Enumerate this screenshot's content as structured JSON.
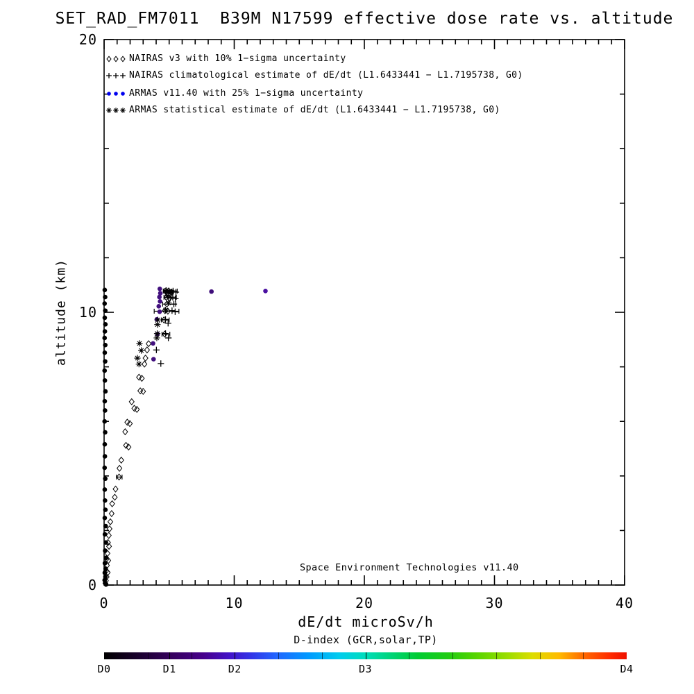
{
  "title": "SET_RAD_FM7011  B39M N17599 effective dose rate vs. altitude",
  "annotation": "Space Environment Technologies v11.40",
  "legend": [
    {
      "symbol": "diamond",
      "color": "#000000",
      "label": "NAIRAS v3 with 10% 1−sigma uncertainty"
    },
    {
      "symbol": "plus",
      "color": "#000000",
      "label": "NAIRAS climatological estimate of dE/dt (L1.6433441 − L1.7195738, G0)"
    },
    {
      "symbol": "dot",
      "color": "#0000ee",
      "label": "ARMAS v11.40 with 25% 1−sigma uncertainty"
    },
    {
      "symbol": "asterisk",
      "color": "#000000",
      "label": "ARMAS statistical estimate of dE/dt (L1.6433441 − L1.7195738, G0)"
    }
  ],
  "chart_data": {
    "type": "scatter",
    "title": "SET_RAD_FM7011  B39M N17599 effective dose rate vs. altitude",
    "xlabel": "dE/dt microSv/h",
    "ylabel": "altitude (km)",
    "xlim": [
      0,
      40
    ],
    "ylim": [
      0,
      20
    ],
    "x_ticks": [
      0,
      10,
      20,
      30,
      40
    ],
    "y_ticks": [
      0,
      10,
      20
    ],
    "x_minor_step": 1,
    "y_minor_step": 2,
    "grid": false,
    "legend_position": "top-left-inside",
    "series": [
      {
        "name": "NAIRAS v3 with 10% 1-sigma uncertainty",
        "marker": "diamond",
        "color": "#000000",
        "points": [
          [
            4.72,
            10.78
          ],
          [
            4.95,
            10.78
          ],
          [
            5.18,
            10.74
          ],
          [
            4.78,
            10.55
          ],
          [
            5.02,
            10.52
          ],
          [
            4.82,
            10.3
          ],
          [
            4.68,
            10.06
          ],
          [
            4.9,
            10.04
          ],
          [
            4.6,
            9.72
          ],
          [
            4.65,
            9.2
          ],
          [
            3.42,
            8.85
          ],
          [
            3.3,
            8.62
          ],
          [
            3.18,
            8.32
          ],
          [
            3.1,
            8.1
          ],
          [
            2.68,
            7.62
          ],
          [
            2.9,
            7.58
          ],
          [
            2.78,
            7.12
          ],
          [
            3.0,
            7.1
          ],
          [
            2.12,
            6.72
          ],
          [
            2.32,
            6.48
          ],
          [
            2.52,
            6.44
          ],
          [
            1.78,
            5.97
          ],
          [
            1.98,
            5.92
          ],
          [
            1.62,
            5.62
          ],
          [
            1.68,
            5.12
          ],
          [
            1.88,
            5.06
          ],
          [
            1.32,
            4.58
          ],
          [
            1.18,
            4.28
          ],
          [
            1.15,
            3.96
          ],
          [
            0.88,
            3.52
          ],
          [
            0.82,
            3.22
          ],
          [
            0.62,
            2.98
          ],
          [
            0.58,
            2.62
          ],
          [
            0.48,
            2.32
          ],
          [
            0.42,
            2.06
          ],
          [
            0.36,
            1.82
          ],
          [
            0.3,
            1.56
          ],
          [
            0.38,
            1.42
          ],
          [
            0.26,
            1.16
          ],
          [
            0.2,
            0.96
          ],
          [
            0.32,
            0.9
          ],
          [
            0.22,
            0.72
          ],
          [
            0.16,
            0.52
          ],
          [
            0.28,
            0.46
          ],
          [
            0.2,
            0.3
          ],
          [
            0.14,
            0.16
          ],
          [
            0.1,
            0.06
          ]
        ]
      },
      {
        "name": "NAIRAS climatological estimate of dE/dt (L1.6433441 - L1.7195738, G0)",
        "marker": "plus",
        "color": "#000000",
        "points": [
          [
            5.3,
            10.78
          ],
          [
            5.52,
            10.74
          ],
          [
            5.28,
            10.55
          ],
          [
            5.48,
            10.5
          ],
          [
            5.36,
            10.3
          ],
          [
            5.22,
            10.06
          ],
          [
            5.46,
            10.02
          ],
          [
            4.72,
            9.74
          ],
          [
            4.92,
            9.6
          ],
          [
            4.72,
            9.22
          ],
          [
            4.94,
            9.06
          ],
          [
            4.02,
            8.62
          ],
          [
            4.36,
            8.12
          ]
        ]
      },
      {
        "name": "ARMAS v11.40 with 25% 1-sigma uncertainty",
        "marker": "dot",
        "color": "#42107e",
        "points_colored": [
          [
            4.28,
            10.86,
            "#42107e"
          ],
          [
            4.32,
            10.7,
            "#42107e"
          ],
          [
            4.25,
            10.56,
            "#42107e"
          ],
          [
            4.3,
            10.4,
            "#42107e"
          ],
          [
            4.2,
            10.22,
            "#42107e"
          ],
          [
            4.27,
            10.02,
            "#42107e"
          ],
          [
            4.05,
            9.74,
            "#42107e"
          ],
          [
            4.1,
            9.2,
            "#42107e"
          ],
          [
            3.76,
            8.86,
            "#42107e"
          ],
          [
            3.8,
            8.28,
            "#42107e"
          ],
          [
            8.25,
            10.76,
            "#3f0e7a"
          ],
          [
            12.4,
            10.78,
            "#4a10a0"
          ],
          [
            0.05,
            10.82,
            "#000000"
          ],
          [
            0.08,
            10.56,
            "#000000"
          ],
          [
            0.04,
            10.32,
            "#000000"
          ],
          [
            0.09,
            10.06,
            "#000000"
          ],
          [
            0.05,
            9.8,
            "#000000"
          ],
          [
            0.1,
            9.56,
            "#000000"
          ],
          [
            0.06,
            9.3,
            "#000000"
          ],
          [
            0.04,
            9.06,
            "#000000"
          ],
          [
            0.09,
            8.8,
            "#000000"
          ],
          [
            0.05,
            8.52,
            "#000000"
          ],
          [
            0.08,
            8.2,
            "#000000"
          ],
          [
            0.04,
            7.86,
            "#000000"
          ],
          [
            0.06,
            7.5,
            "#000000"
          ],
          [
            0.1,
            7.1,
            "#000000"
          ],
          [
            0.05,
            6.74,
            "#000000"
          ],
          [
            0.07,
            6.4,
            "#000000"
          ],
          [
            0.04,
            6.0,
            "#000000"
          ],
          [
            0.08,
            5.6,
            "#000000"
          ],
          [
            0.05,
            5.16,
            "#000000"
          ],
          [
            0.06,
            4.72,
            "#000000"
          ],
          [
            0.04,
            4.3,
            "#000000"
          ],
          [
            0.09,
            3.9,
            "#000000"
          ],
          [
            0.05,
            3.5,
            "#000000"
          ],
          [
            0.07,
            3.1,
            "#000000"
          ],
          [
            0.1,
            2.76,
            "#000000"
          ],
          [
            0.05,
            2.46,
            "#000000"
          ],
          [
            0.12,
            2.16,
            "#000000"
          ],
          [
            0.06,
            1.86,
            "#000000"
          ],
          [
            0.14,
            1.56,
            "#000000"
          ],
          [
            0.08,
            1.26,
            "#000000"
          ],
          [
            0.16,
            1.0,
            "#000000"
          ],
          [
            0.06,
            0.8,
            "#000000"
          ],
          [
            0.12,
            0.6,
            "#000000"
          ],
          [
            0.05,
            0.45,
            "#000000"
          ],
          [
            0.1,
            0.3,
            "#000000"
          ],
          [
            0.04,
            0.18,
            "#000000"
          ],
          [
            0.08,
            0.08,
            "#000000"
          ],
          [
            0.15,
            0.02,
            "#000000"
          ]
        ]
      },
      {
        "name": "ARMAS statistical estimate of dE/dt (L1.6433441 - L1.7195738, G0)",
        "marker": "asterisk",
        "color": "#000000",
        "points": [
          [
            4.78,
            10.8
          ],
          [
            5.0,
            10.78
          ],
          [
            5.2,
            10.74
          ],
          [
            4.85,
            10.6
          ],
          [
            5.08,
            10.56
          ],
          [
            4.95,
            10.35
          ],
          [
            4.72,
            10.08
          ],
          [
            4.12,
            9.72
          ],
          [
            4.1,
            9.55
          ],
          [
            4.08,
            9.22
          ],
          [
            4.05,
            9.06
          ],
          [
            2.72,
            8.86
          ],
          [
            2.86,
            8.6
          ],
          [
            2.56,
            8.32
          ],
          [
            2.68,
            8.1
          ]
        ]
      }
    ],
    "error_bars": [
      [
        4.55,
        5.62,
        10.78
      ],
      [
        4.6,
        5.55,
        10.55
      ],
      [
        4.5,
        5.5,
        10.3
      ],
      [
        3.85,
        5.75,
        10.04
      ],
      [
        4.4,
        5.0,
        9.72
      ],
      [
        4.45,
        5.05,
        9.2
      ],
      [
        0.95,
        1.38,
        3.96
      ]
    ],
    "dense_cluster_rects": [
      [
        4.62,
        10.82,
        5.35,
        10.68
      ]
    ]
  },
  "colorbar": {
    "label": "D-index (GCR,solar,TP)",
    "tick_labels": [
      {
        "text": "D0",
        "pos": 0
      },
      {
        "text": "D1",
        "pos": 12.5
      },
      {
        "text": "D2",
        "pos": 25
      },
      {
        "text": "D3",
        "pos": 50
      },
      {
        "text": "D4",
        "pos": 100
      }
    ],
    "minor_tick_count": 11,
    "gradient": [
      [
        0,
        "#000000"
      ],
      [
        7,
        "#1b0030"
      ],
      [
        13,
        "#36005e"
      ],
      [
        19,
        "#47008c"
      ],
      [
        24,
        "#4312c8"
      ],
      [
        28,
        "#3333e6"
      ],
      [
        33,
        "#2266ff"
      ],
      [
        39,
        "#0099ff"
      ],
      [
        45,
        "#00ccee"
      ],
      [
        50,
        "#00ddbb"
      ],
      [
        55,
        "#00d477"
      ],
      [
        60,
        "#00cc33"
      ],
      [
        66,
        "#22cc11"
      ],
      [
        71,
        "#55d400"
      ],
      [
        77,
        "#99dd00"
      ],
      [
        82,
        "#dddd00"
      ],
      [
        87,
        "#ffbb00"
      ],
      [
        92,
        "#ff6600"
      ],
      [
        97,
        "#ff2a00"
      ],
      [
        100,
        "#ee1100"
      ]
    ]
  }
}
